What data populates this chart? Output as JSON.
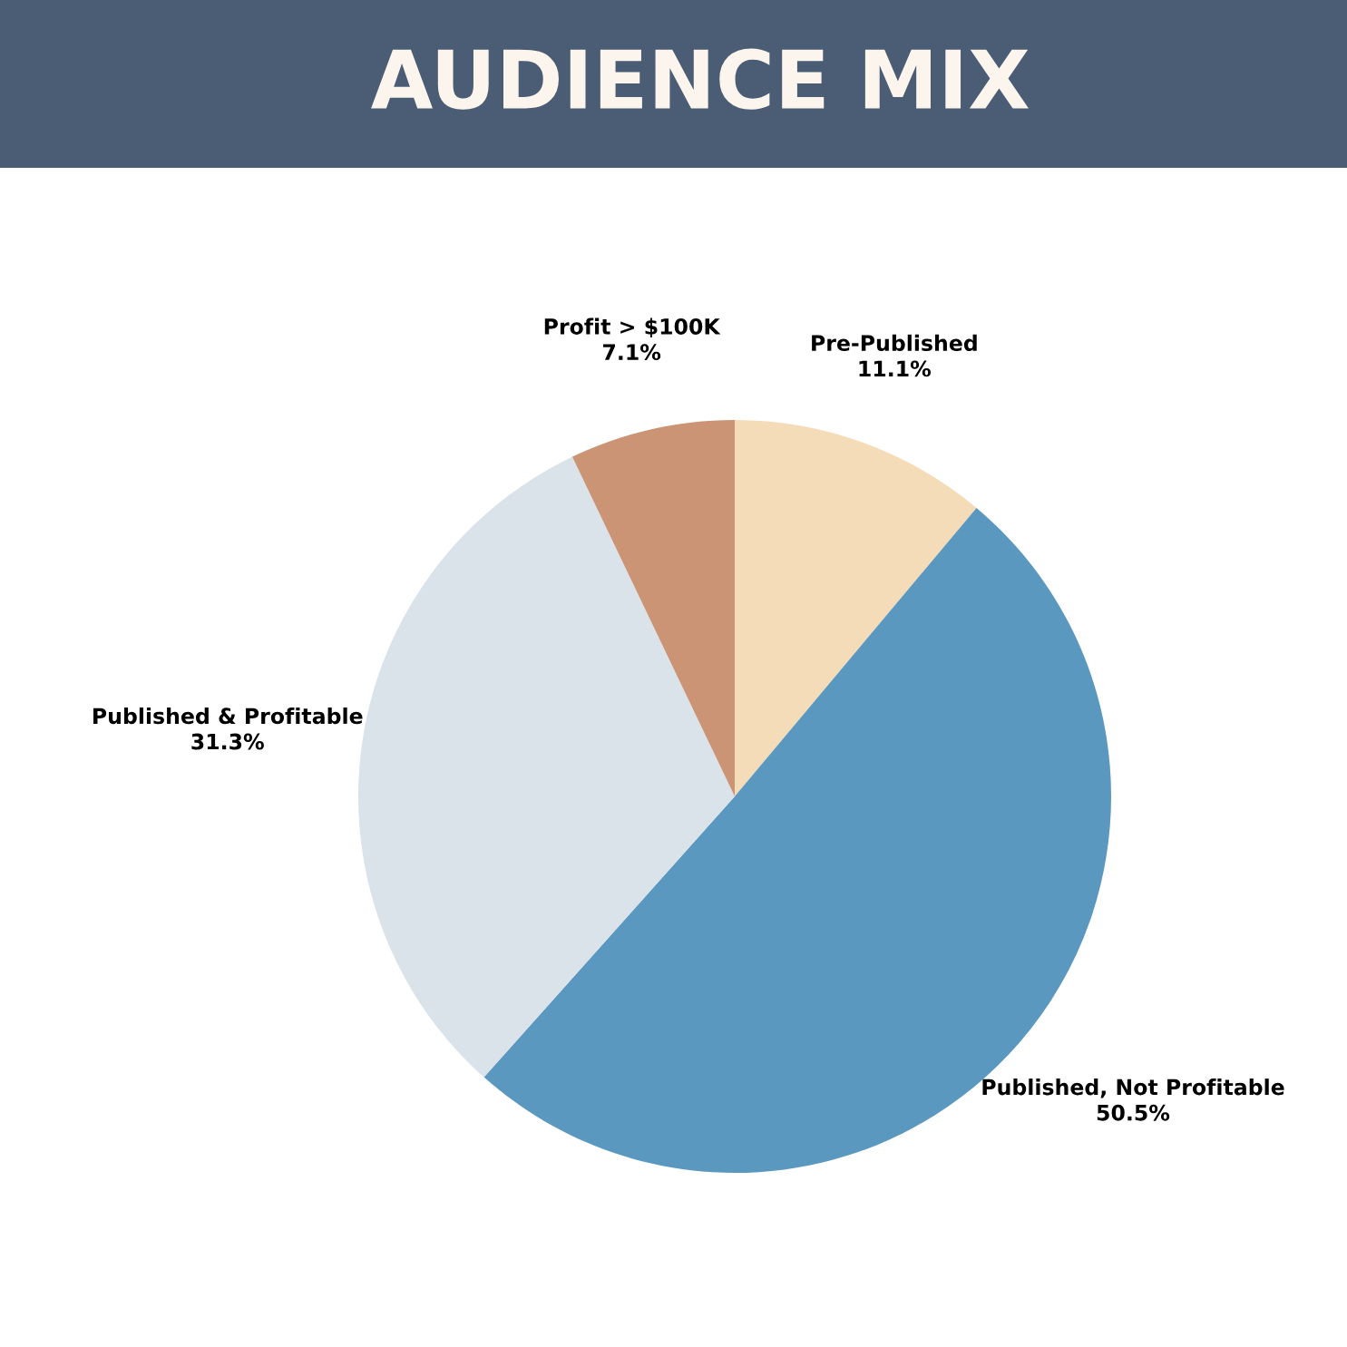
{
  "chart_data": {
    "type": "pie",
    "title": "AUDIENCE MIX",
    "categories": [
      "Pre-Published",
      "Published, Not Profitable",
      "Published & Profitable",
      "Profit > $100K"
    ],
    "values": [
      11.1,
      50.5,
      31.3,
      7.1
    ],
    "value_labels": [
      "11.1%",
      "50.5%",
      "31.3%",
      "7.1%"
    ],
    "colors": [
      "#f5dcb9",
      "#5b98c0",
      "#dae2ea",
      "#cb9474"
    ],
    "legend": false
  }
}
